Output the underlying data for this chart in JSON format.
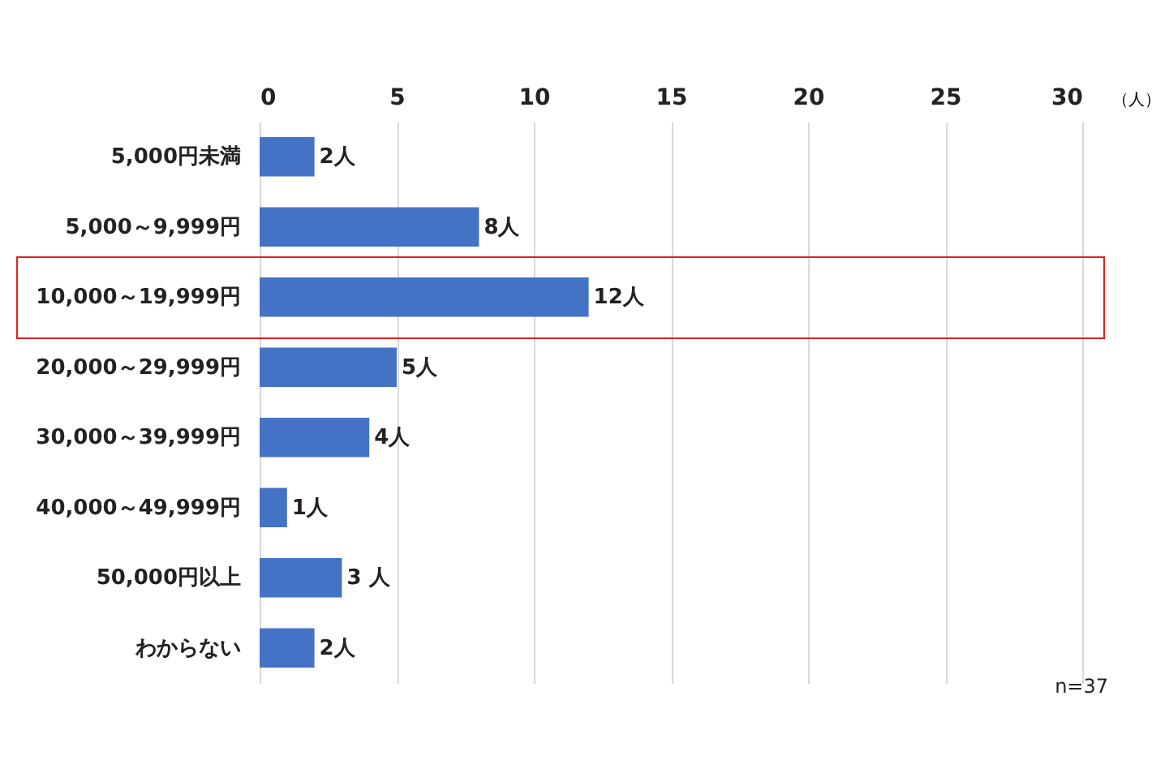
{
  "chart_data": {
    "type": "bar",
    "orientation": "horizontal",
    "xlabel": "（人）",
    "categories": [
      "5,000円未満",
      "5,000～9,999円",
      "10,000～19,999円",
      "20,000～29,999円",
      "30,000～39,999円",
      "40,000～49,999円",
      "50,000円以上",
      "わからない"
    ],
    "values": [
      2,
      8,
      12,
      5,
      4,
      1,
      3,
      2
    ],
    "value_labels": [
      "2人",
      "8人",
      "12人",
      "5人",
      "4人",
      "1人",
      "3 人",
      "2人"
    ],
    "color": "#4472c4",
    "xlim": [
      0,
      30
    ],
    "xticks": [
      0,
      5,
      10,
      15,
      20,
      25,
      30
    ],
    "grid": "x",
    "annotations": [
      "n=37"
    ]
  }
}
